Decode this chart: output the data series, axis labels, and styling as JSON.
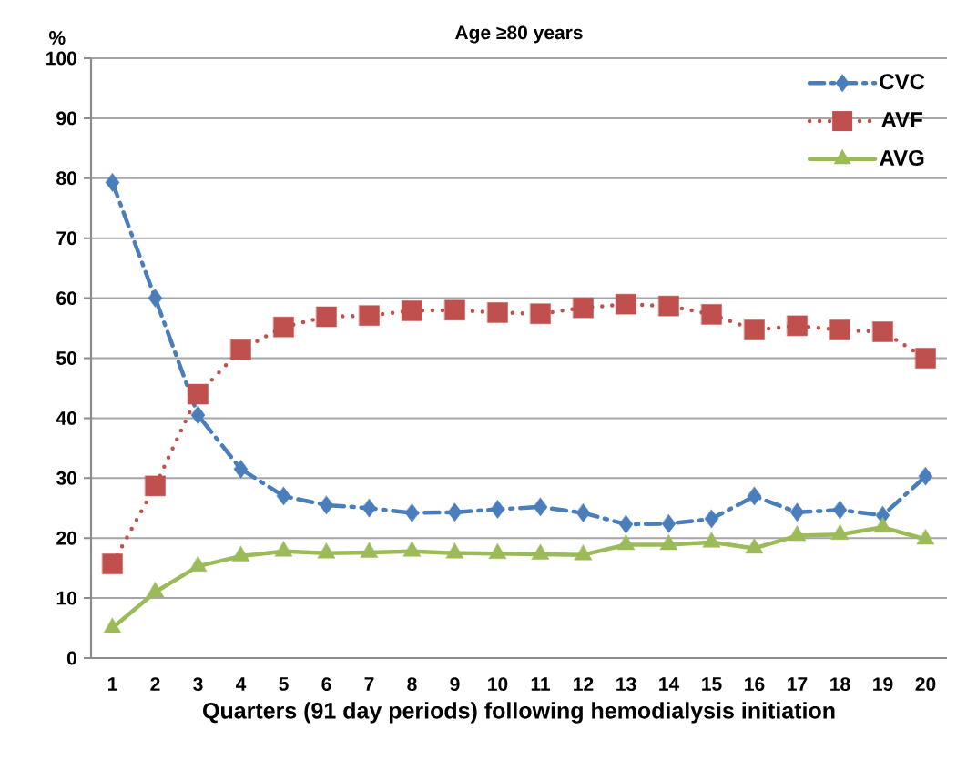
{
  "chart_data": {
    "type": "line",
    "title": "Age ≥80 years",
    "xlabel": "Quarters (91 day periods) following hemodialysis initiation",
    "ylabel": "%",
    "categories": [
      "1",
      "2",
      "3",
      "4",
      "5",
      "6",
      "7",
      "8",
      "9",
      "10",
      "11",
      "12",
      "13",
      "14",
      "15",
      "16",
      "17",
      "18",
      "19",
      "20"
    ],
    "series": [
      {
        "name": "CVC",
        "color": "#4a7ebb",
        "marker": "diamond",
        "line_style": "dashed",
        "values": [
          79.3,
          60,
          40.5,
          31.5,
          27,
          25.5,
          25,
          24.2,
          24.3,
          24.8,
          25.2,
          24.2,
          22.3,
          22.4,
          23.2,
          27,
          24.3,
          24.7,
          23.8,
          30.3
        ]
      },
      {
        "name": "AVF",
        "color": "#c0504d",
        "marker": "square",
        "line_style": "dotted",
        "values": [
          15.7,
          28.7,
          44,
          51.4,
          55.2,
          56.9,
          57.1,
          57.9,
          58,
          57.6,
          57.4,
          58.4,
          59,
          58.7,
          57.3,
          54.7,
          55.4,
          54.7,
          54.4,
          50
        ]
      },
      {
        "name": "AVG",
        "color": "#9bbb59",
        "marker": "triangle",
        "line_style": "solid",
        "values": [
          5,
          11,
          15.3,
          17,
          17.8,
          17.5,
          17.6,
          17.8,
          17.5,
          17.4,
          17.3,
          17.2,
          18.9,
          18.9,
          19.3,
          18.3,
          20.4,
          20.6,
          21.8,
          19.8
        ]
      }
    ],
    "ylim": [
      0,
      100
    ],
    "yticks": [
      0,
      10,
      20,
      30,
      40,
      50,
      60,
      70,
      80,
      90,
      100
    ],
    "grid": "y",
    "legend": "top right"
  }
}
